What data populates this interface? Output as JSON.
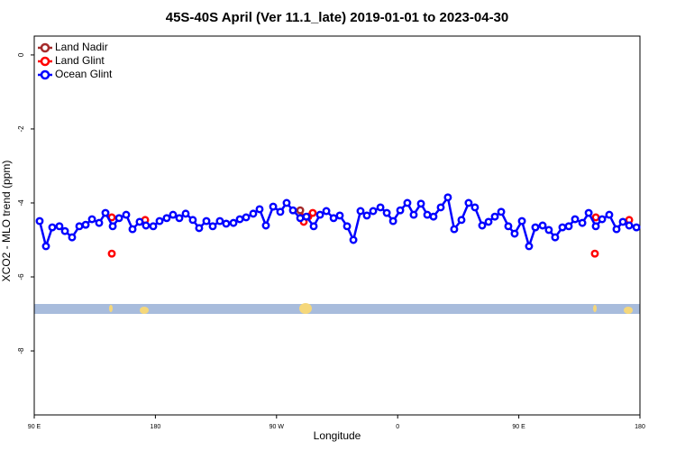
{
  "chart_data": {
    "type": "scatter",
    "title": "45S-40S April (Ver 11.1_late)   2019-01-01 to 2023-04-30",
    "x_label": "Longitude",
    "y_label": "XCO2 - MLO trend (ppm)",
    "xlim": [
      90,
      540
    ],
    "ylim": [
      -9.73,
      0.51
    ],
    "xticks": [
      {
        "value": 90,
        "label": "90 E"
      },
      180,
      {
        "value": 270,
        "label": "90 W"
      },
      {
        "value": 360,
        "label": "0"
      },
      {
        "value": 450,
        "label": "90 E"
      },
      {
        "value": 540,
        "label": "180"
      }
    ],
    "yticks": [
      0,
      -2,
      -4,
      -6,
      -8
    ],
    "legend": "top-left",
    "series": [
      {
        "name": "Land Nadir",
        "color": "#a52a2a",
        "mode": "markers",
        "x": [
          287.6
        ],
        "values": [
          -4.2
        ]
      },
      {
        "name": "Land Glint",
        "color": "#ff0000",
        "mode": "markers",
        "x": [
          147.6,
          147.6,
          172.4,
          289.5,
          290.2,
          293.6,
          296.9,
          507.2,
          506.5,
          532.0
        ],
        "values": [
          -4.39,
          -5.37,
          -4.46,
          -4.39,
          -4.51,
          -4.37,
          -4.27,
          -4.39,
          -5.37,
          -4.46
        ]
      },
      {
        "name": "Ocean Glint",
        "color": "#0000ff",
        "mode": "lines+markers",
        "x": [
          94.0,
          98.7,
          103.4,
          108.7,
          112.8,
          118.1,
          123.5,
          128.2,
          132.9,
          138.2,
          142.9,
          148.3,
          153.0,
          158.3,
          163.0,
          168.3,
          173.0,
          178.4,
          183.1,
          188.4,
          193.1,
          197.8,
          202.5,
          207.8,
          212.5,
          217.9,
          222.6,
          227.9,
          232.6,
          238.0,
          242.7,
          247.4,
          252.7,
          257.4,
          262.1,
          267.5,
          272.8,
          277.5,
          282.2,
          287.6,
          292.2,
          297.6,
          302.3,
          307.0,
          312.4,
          317.0,
          322.4,
          327.1,
          332.4,
          337.1,
          341.8,
          347.2,
          351.9,
          356.6,
          361.9,
          367.2,
          371.9,
          377.3,
          382.0,
          386.6,
          392.0,
          397.3,
          402.0,
          407.4,
          412.7,
          417.4,
          422.8,
          427.5,
          432.2,
          436.9,
          442.2,
          446.9,
          452.3,
          457.6,
          462.3,
          467.7,
          472.3,
          477.0,
          482.4,
          487.1,
          491.8,
          497.2,
          501.9,
          507.2,
          511.9,
          517.2,
          522.6,
          527.3,
          532.0,
          537.4
        ],
        "values": [
          -4.49,
          -5.17,
          -4.66,
          -4.63,
          -4.76,
          -4.93,
          -4.63,
          -4.59,
          -4.44,
          -4.54,
          -4.27,
          -4.63,
          -4.41,
          -4.32,
          -4.71,
          -4.51,
          -4.61,
          -4.63,
          -4.49,
          -4.41,
          -4.32,
          -4.41,
          -4.29,
          -4.46,
          -4.68,
          -4.49,
          -4.63,
          -4.49,
          -4.56,
          -4.54,
          -4.44,
          -4.39,
          -4.29,
          -4.17,
          -4.61,
          -4.1,
          -4.24,
          -4.0,
          -4.2,
          -4.41,
          -4.37,
          -4.63,
          -4.32,
          -4.22,
          -4.41,
          -4.34,
          -4.63,
          -5.0,
          -4.22,
          -4.34,
          -4.22,
          -4.12,
          -4.27,
          -4.49,
          -4.2,
          -4.0,
          -4.32,
          -4.02,
          -4.32,
          -4.37,
          -4.12,
          -3.85,
          -4.71,
          -4.46,
          -4.0,
          -4.12,
          -4.61,
          -4.51,
          -4.37,
          -4.24,
          -4.63,
          -4.83,
          -4.49,
          -5.17,
          -4.66,
          -4.61,
          -4.73,
          -4.93,
          -4.66,
          -4.63,
          -4.44,
          -4.54,
          -4.27,
          -4.63,
          -4.44,
          -4.32,
          -4.71,
          -4.51,
          -4.61,
          -4.66
        ]
      }
    ]
  }
}
